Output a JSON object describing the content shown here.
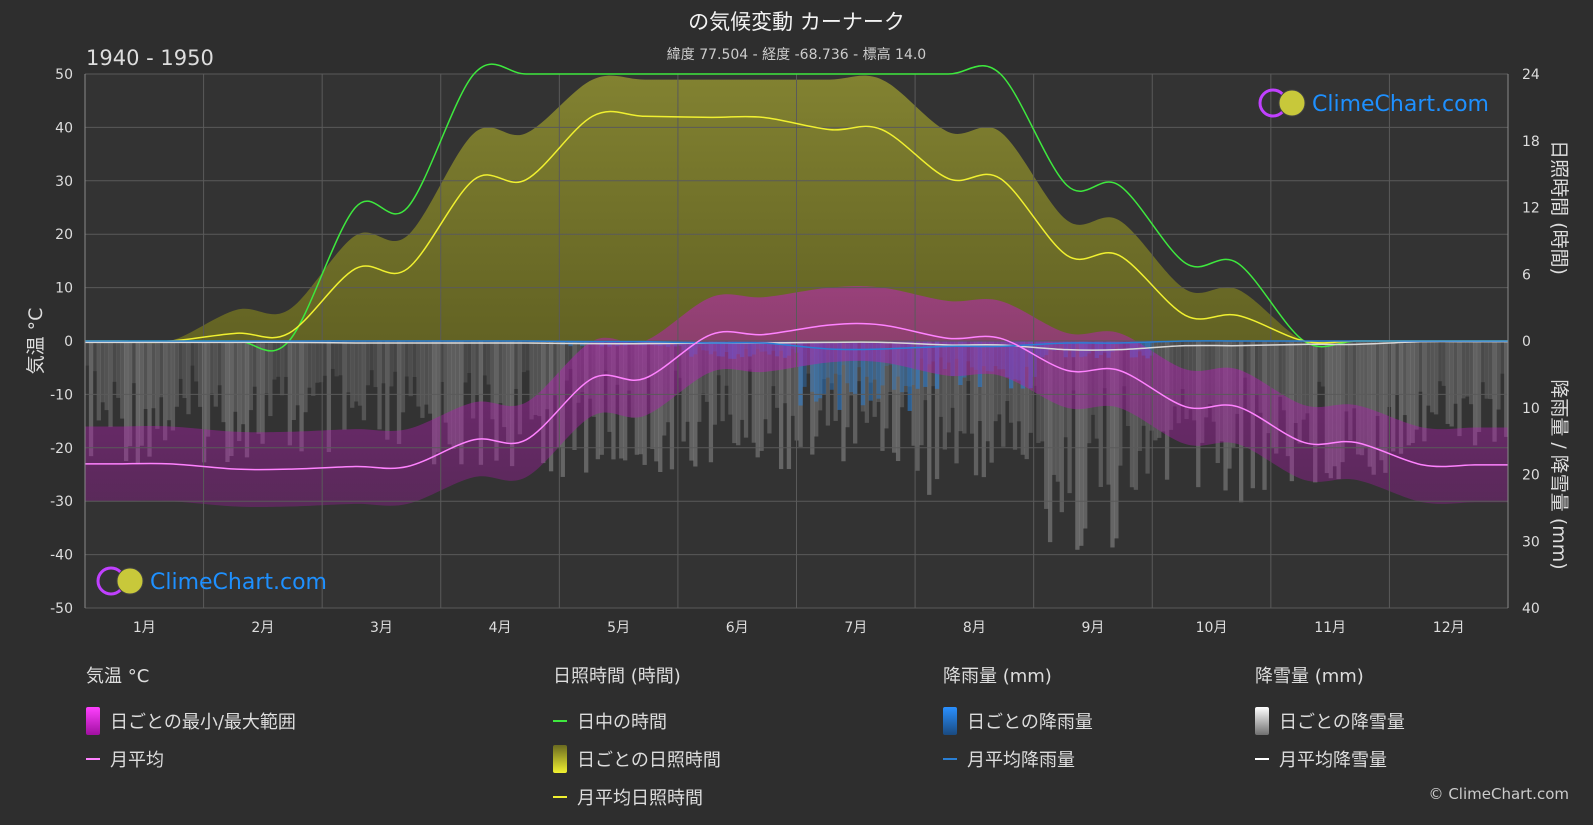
{
  "header": {
    "title": "の気候変動 カーナーク",
    "subtitle": "緯度 77.504 - 経度 -68.736 - 標高 14.0",
    "period": "1940 - 1950"
  },
  "watermark": {
    "text": "ClimeChart.com"
  },
  "copyright": "© ClimeChart.com",
  "colors": {
    "background": "#2e2e2e",
    "temp_range": "#d21fd2",
    "temp_mean": "#ff82ff",
    "daylight": "#3ee83e",
    "sunshine_fill": "#9e9e22",
    "sunshine_mean": "#f0f030",
    "rain": "#2a7fd4",
    "snow": "#bdbdbd",
    "snow_mean": "#d8d8d8",
    "logo_blue": "#1e90ff"
  },
  "axes": {
    "left_label": "気温 °C",
    "right_top_label": "日照時間 (時間)",
    "right_bottom_label": "降雨量 / 降雪量 (mm)",
    "left_ticks": [
      "50",
      "40",
      "30",
      "20",
      "10",
      "0",
      "-10",
      "-20",
      "-30",
      "-40",
      "-50"
    ],
    "right_top_ticks": [
      "24",
      "18",
      "12",
      "6",
      "0"
    ],
    "right_bottom_ticks": [
      "10",
      "20",
      "30",
      "40"
    ]
  },
  "legend": {
    "temperature": {
      "heading": "気温 °C",
      "items": [
        "日ごとの最小/最大範囲",
        "月平均"
      ]
    },
    "sunshine": {
      "heading": "日照時間 (時間)",
      "items": [
        "日中の時間",
        "日ごとの日照時間",
        "月平均日照時間"
      ]
    },
    "rain": {
      "heading": "降雨量 (mm)",
      "items": [
        "日ごとの降雨量",
        "月平均降雨量"
      ]
    },
    "snow": {
      "heading": "降雪量 (mm)",
      "items": [
        "日ごとの降雪量",
        "月平均降雪量"
      ]
    }
  },
  "chart_data": {
    "type": "line",
    "categories": [
      "1月",
      "2月",
      "3月",
      "4月",
      "5月",
      "6月",
      "7月",
      "8月",
      "9月",
      "10月",
      "11月",
      "12月"
    ],
    "temp_ylim": [
      -50,
      50
    ],
    "sun_ylim": [
      0,
      24
    ],
    "precip_ylim": [
      0,
      40
    ],
    "grid": true,
    "series": [
      {
        "name": "月平均",
        "axis": "temperature",
        "values": [
          -23,
          -24,
          -23.5,
          -18.5,
          -7,
          1.2,
          3,
          0.5,
          -5.5,
          -12.3,
          -19,
          -23.2
        ]
      },
      {
        "name": "日中の時間",
        "axis": "sunshine",
        "values": [
          0,
          0,
          12,
          24,
          24,
          24,
          24,
          24,
          14,
          7,
          0,
          0
        ]
      },
      {
        "name": "月平均日照時間",
        "axis": "sunshine",
        "values": [
          0,
          0.7,
          6.5,
          14.5,
          20.2,
          20.1,
          19,
          14.6,
          7.7,
          2.3,
          0,
          0
        ]
      },
      {
        "name": "月平均降雨量",
        "axis": "precipitation",
        "values": [
          0,
          0,
          0,
          0,
          0.1,
          0.3,
          1.2,
          0.8,
          0.3,
          0,
          0,
          0
        ]
      },
      {
        "name": "月平均降雪量",
        "axis": "precipitation",
        "values": [
          0.2,
          0.2,
          0.3,
          0.3,
          0.4,
          0.3,
          0.2,
          0.6,
          1.3,
          0.7,
          0.5,
          0.1
        ]
      }
    ]
  }
}
